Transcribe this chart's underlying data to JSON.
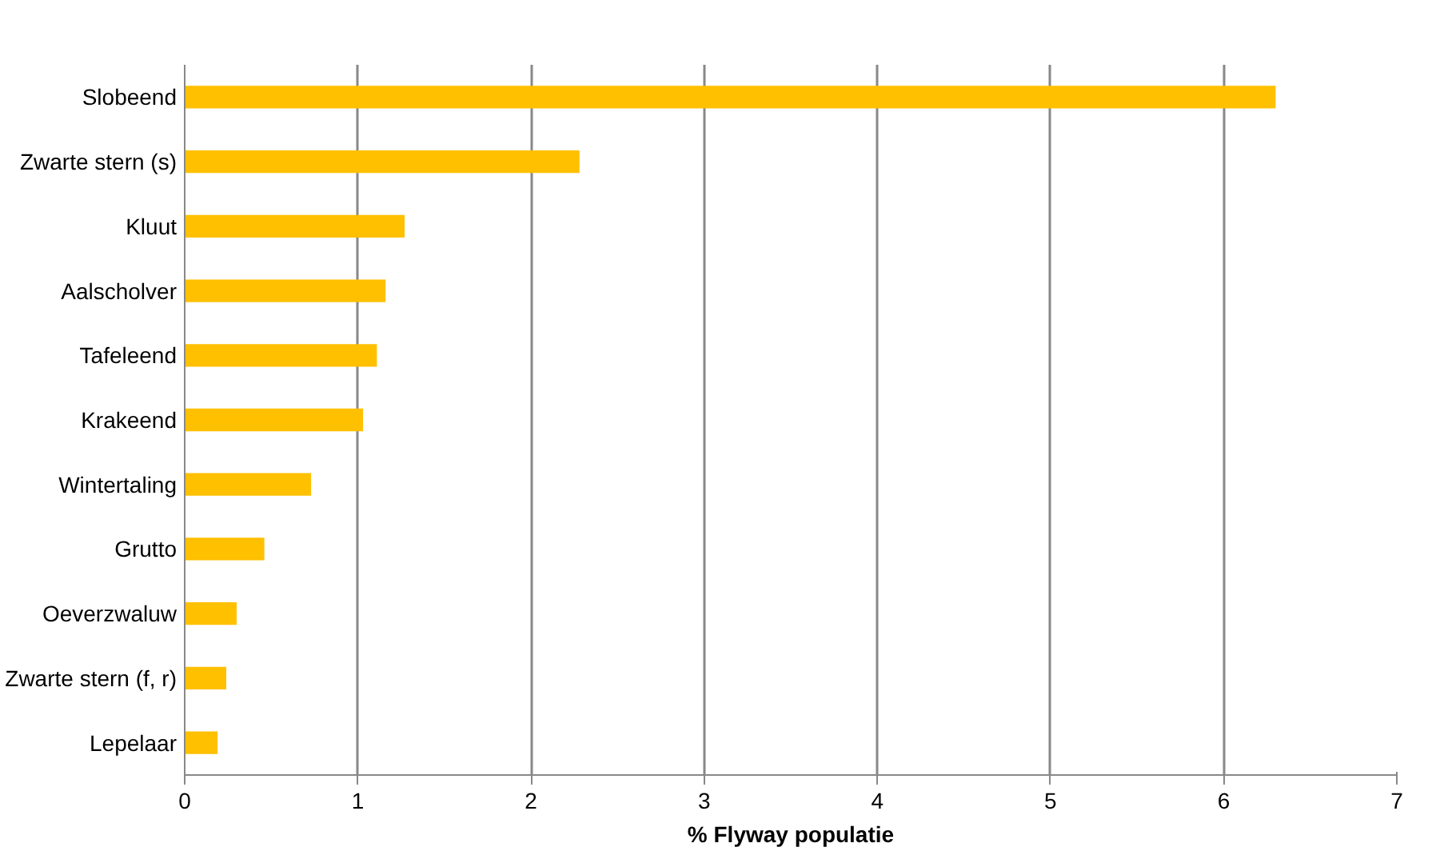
{
  "chart_data": {
    "type": "bar",
    "orientation": "horizontal",
    "xlabel": "% Flyway populatie",
    "categories": [
      "Slobeend",
      "Zwarte stern (s)",
      "Kluut",
      "Aalscholver",
      "Tafeleend",
      "Krakeend",
      "Wintertaling",
      "Grutto",
      "Oeverzwaluw",
      "Zwarte stern (f, r)",
      "Lepelaar"
    ],
    "values": [
      6.3,
      2.28,
      1.27,
      1.16,
      1.11,
      1.03,
      0.73,
      0.46,
      0.3,
      0.24,
      0.19
    ],
    "color": "#ffc000",
    "xlim": [
      0,
      7
    ],
    "xticks": [
      0,
      1,
      2,
      3,
      4,
      5,
      6,
      7
    ],
    "grid": "x"
  }
}
